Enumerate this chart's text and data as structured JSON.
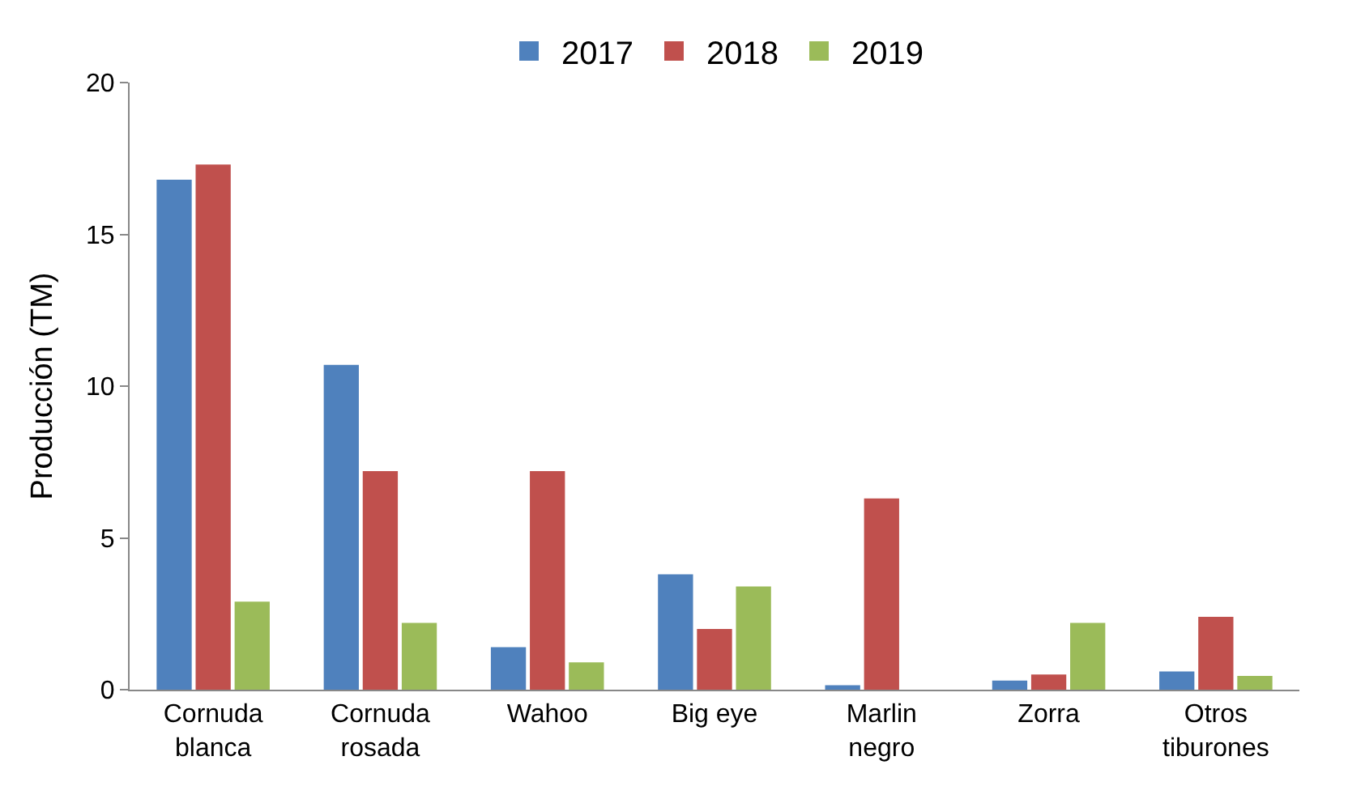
{
  "chart_data": {
    "type": "bar",
    "ylabel": "Producción (TM)",
    "categories": [
      "Cornuda blanca",
      "Cornuda rosada",
      "Wahoo",
      "Big eye",
      "Marlin negro",
      "Zorra",
      "Otros tiburones"
    ],
    "series": [
      {
        "name": "2017",
        "color": "#4f81bd",
        "values": [
          16.8,
          10.7,
          1.4,
          3.8,
          0.15,
          0.3,
          0.6
        ]
      },
      {
        "name": "2018",
        "color": "#c0504d",
        "values": [
          17.3,
          7.2,
          7.2,
          2.0,
          6.3,
          0.5,
          2.4
        ]
      },
      {
        "name": "2019",
        "color": "#9bbb59",
        "values": [
          2.9,
          2.2,
          0.9,
          3.4,
          0,
          2.2,
          0.45
        ]
      }
    ],
    "ylim": [
      0,
      20
    ],
    "yticks": [
      0,
      5,
      10,
      15,
      20
    ],
    "legend": "top"
  }
}
